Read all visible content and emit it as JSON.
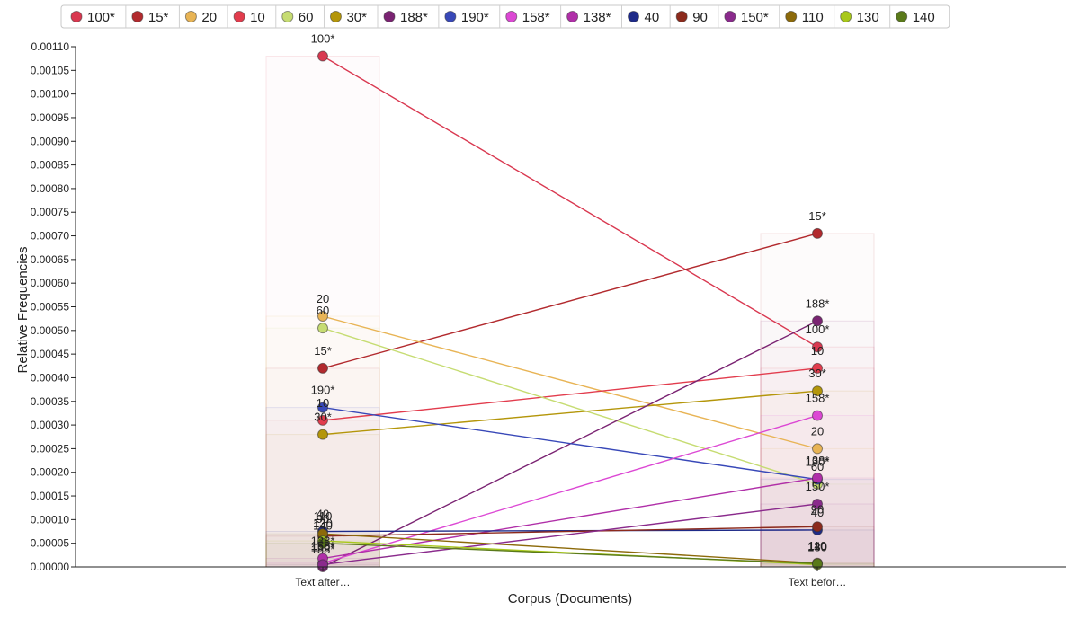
{
  "chart_data": {
    "type": "line",
    "title": "",
    "xlabel": "Corpus (Documents)",
    "ylabel": "Relative Frequencies",
    "categories": [
      "Text after…",
      "Text befor…"
    ],
    "ylim": [
      0,
      0.0011
    ],
    "yticks": [
      "0.00000",
      "0.00005",
      "0.00010",
      "0.00015",
      "0.00020",
      "0.00025",
      "0.00030",
      "0.00035",
      "0.00040",
      "0.00045",
      "0.00050",
      "0.00055",
      "0.00060",
      "0.00065",
      "0.00070",
      "0.00075",
      "0.00080",
      "0.00085",
      "0.00090",
      "0.00095",
      "0.00100",
      "0.00105",
      "0.00110"
    ],
    "grid": false,
    "legend_position": "top",
    "series": [
      {
        "name": "100*",
        "color": "#d93850",
        "values": [
          0.00108,
          0.000465
        ]
      },
      {
        "name": "15*",
        "color": "#b22a2e",
        "values": [
          0.00042,
          0.000705
        ]
      },
      {
        "name": "20",
        "color": "#e8b455",
        "values": [
          0.00053,
          0.00025
        ]
      },
      {
        "name": "10",
        "color": "#e23c4d",
        "values": [
          0.00031,
          0.00042
        ]
      },
      {
        "name": "60",
        "color": "#c6dc72",
        "values": [
          0.000505,
          0.000175
        ]
      },
      {
        "name": "30*",
        "color": "#b4960a",
        "values": [
          0.00028,
          0.000372
        ]
      },
      {
        "name": "188*",
        "color": "#7a2372",
        "values": [
          0.0,
          0.00052
        ]
      },
      {
        "name": "190*",
        "color": "#3848b8",
        "values": [
          0.000337,
          0.000185
        ]
      },
      {
        "name": "158*",
        "color": "#dc48d4",
        "values": [
          8e-06,
          0.00032
        ]
      },
      {
        "name": "138*",
        "color": "#b02fa8",
        "values": [
          1.8e-05,
          0.000188
        ]
      },
      {
        "name": "40",
        "color": "#1e2a88",
        "values": [
          7.5e-05,
          7.8e-05
        ]
      },
      {
        "name": "90",
        "color": "#8c2a1c",
        "values": [
          6.5e-05,
          8.5e-05
        ]
      },
      {
        "name": "150*",
        "color": "#8a2a8c",
        "values": [
          5e-06,
          0.000133
        ]
      },
      {
        "name": "110",
        "color": "#8c6a0a",
        "values": [
          7e-05,
          8e-06
        ]
      },
      {
        "name": "130",
        "color": "#a8c81a",
        "values": [
          5.5e-05,
          5e-06
        ]
      },
      {
        "name": "140",
        "color": "#5a7a1a",
        "values": [
          5e-05,
          7e-06
        ]
      }
    ]
  }
}
